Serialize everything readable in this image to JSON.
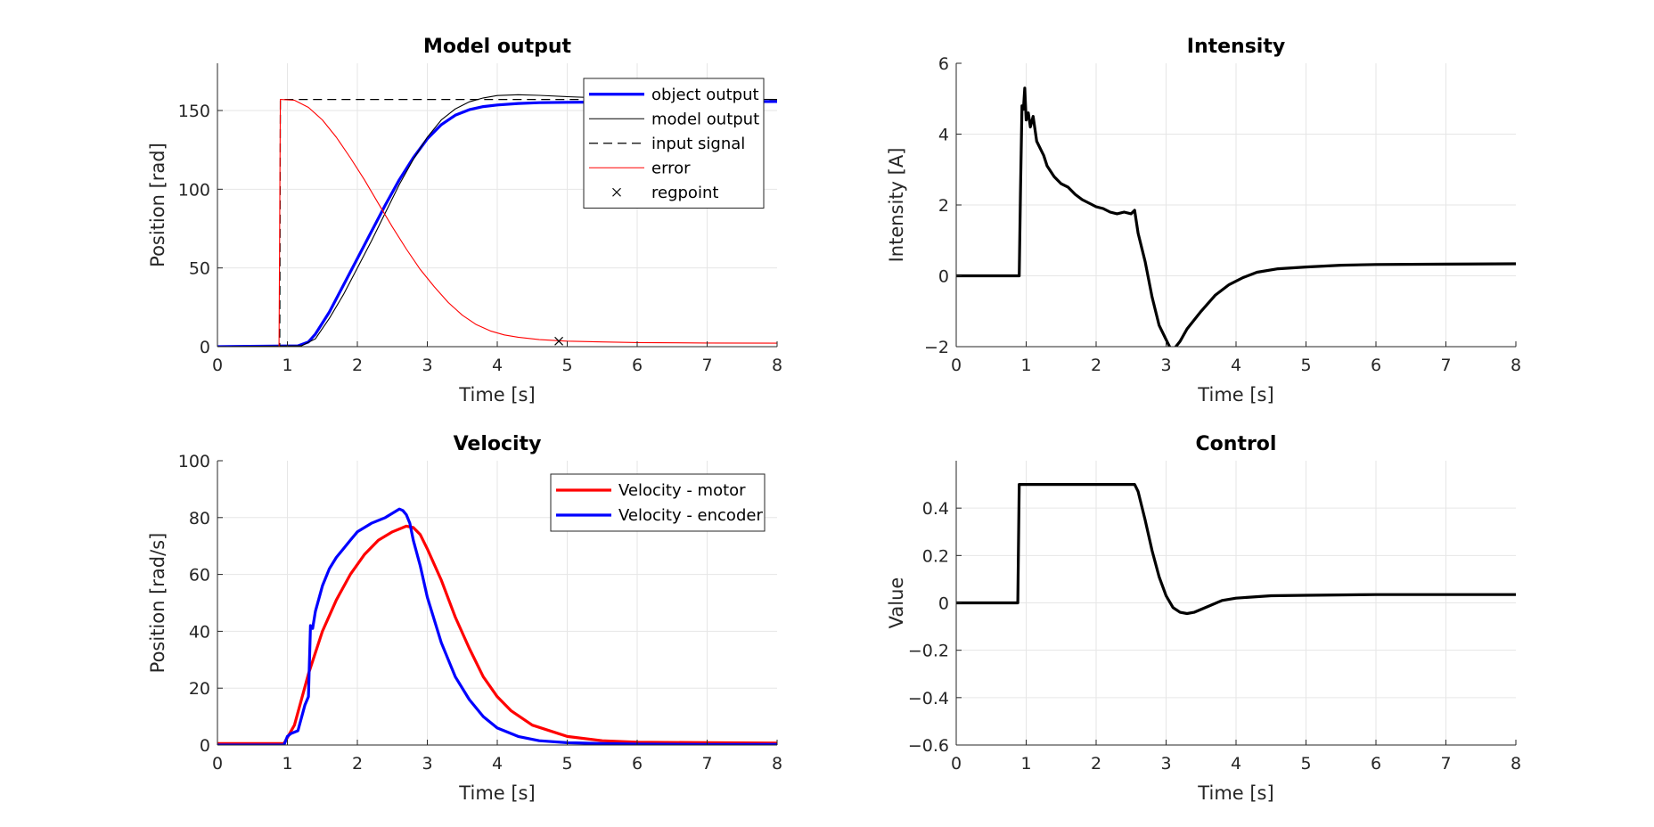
{
  "chart_data": [
    {
      "type": "line",
      "title": "Model output",
      "xlabel": "Time [s]",
      "ylabel": "Position [rad]",
      "xlim": [
        0,
        8
      ],
      "ylim": [
        0,
        180
      ],
      "xticks": [
        0,
        1,
        2,
        3,
        4,
        5,
        6,
        7,
        8
      ],
      "yticks": [
        0,
        50,
        100,
        150
      ],
      "grid": true,
      "legend_position": "top-right",
      "series": [
        {
          "name": "object output",
          "color": "#0000ff",
          "style": "solid-thick",
          "x": [
            0,
            1.15,
            1.3,
            1.4,
            1.6,
            1.8,
            2.0,
            2.2,
            2.4,
            2.6,
            2.8,
            3.0,
            3.2,
            3.4,
            3.6,
            3.8,
            4.0,
            4.3,
            4.6,
            5.0,
            5.5,
            6.0,
            7.0,
            8.0
          ],
          "y": [
            0,
            0.5,
            3,
            8,
            22,
            39,
            56,
            73,
            90,
            106,
            120,
            132,
            141,
            147,
            150.5,
            152.5,
            153.5,
            154.5,
            155,
            155.2,
            155.4,
            155.5,
            155.6,
            155.7
          ]
        },
        {
          "name": "model output",
          "color": "#000000",
          "style": "solid-thin",
          "x": [
            0,
            1.2,
            1.4,
            1.6,
            1.8,
            2.0,
            2.2,
            2.4,
            2.6,
            2.8,
            3.0,
            3.2,
            3.4,
            3.6,
            3.8,
            4.0,
            4.3,
            4.6,
            5.0,
            5.5,
            6.0,
            7.0,
            8.0
          ],
          "y": [
            0,
            0.5,
            5,
            18,
            33,
            50,
            67,
            85,
            103,
            119,
            133,
            144,
            151,
            155.5,
            158,
            159.5,
            160,
            159.6,
            158.8,
            158,
            157.5,
            157.2,
            157
          ]
        },
        {
          "name": "input signal",
          "color": "#000000",
          "style": "dashed",
          "x": [
            0,
            0.89,
            0.9,
            8.0
          ],
          "y": [
            0,
            0,
            157,
            157
          ]
        },
        {
          "name": "error",
          "color": "#ff0000",
          "style": "solid-thin",
          "x": [
            0,
            0.88,
            0.9,
            1.1,
            1.3,
            1.5,
            1.7,
            1.9,
            2.1,
            2.3,
            2.5,
            2.7,
            2.9,
            3.1,
            3.3,
            3.5,
            3.7,
            3.9,
            4.1,
            4.3,
            4.6,
            5.0,
            5.5,
            6.0,
            7.0,
            8.0
          ],
          "y": [
            0,
            0,
            157,
            156.5,
            152,
            144,
            133,
            120,
            106,
            91,
            76,
            62,
            49,
            38,
            28,
            20,
            14,
            10,
            7.5,
            6,
            4.5,
            3.5,
            3,
            2.6,
            2.3,
            2.2
          ]
        },
        {
          "name": "regpoint",
          "color": "#000000",
          "style": "marker-x",
          "x": [
            4.88
          ],
          "y": [
            3.5
          ]
        }
      ]
    },
    {
      "type": "line",
      "title": "Intensity",
      "xlabel": "Time [s]",
      "ylabel": "Intensity [A]",
      "xlim": [
        0,
        8
      ],
      "ylim": [
        -2,
        6
      ],
      "xticks": [
        0,
        1,
        2,
        3,
        4,
        5,
        6,
        7,
        8
      ],
      "yticks": [
        -2,
        0,
        2,
        4,
        6
      ],
      "grid": true,
      "series": [
        {
          "name": "",
          "color": "#000000",
          "style": "solid-thick",
          "x": [
            0,
            0.9,
            0.92,
            0.94,
            0.96,
            0.98,
            1.0,
            1.03,
            1.06,
            1.1,
            1.15,
            1.2,
            1.25,
            1.3,
            1.4,
            1.5,
            1.6,
            1.7,
            1.8,
            1.9,
            2.0,
            2.1,
            2.2,
            2.3,
            2.4,
            2.5,
            2.55,
            2.6,
            2.7,
            2.8,
            2.9,
            3.0,
            3.05,
            3.1,
            3.2,
            3.3,
            3.5,
            3.7,
            3.9,
            4.1,
            4.3,
            4.6,
            5.0,
            5.5,
            6.0,
            7.0,
            8.0
          ],
          "y": [
            0,
            0,
            2.5,
            4.8,
            4.7,
            5.3,
            4.4,
            4.6,
            4.2,
            4.5,
            3.8,
            3.6,
            3.4,
            3.1,
            2.8,
            2.6,
            2.5,
            2.3,
            2.15,
            2.05,
            1.95,
            1.9,
            1.8,
            1.75,
            1.8,
            1.75,
            1.85,
            1.2,
            0.4,
            -0.6,
            -1.4,
            -1.8,
            -2.0,
            -2.1,
            -1.85,
            -1.5,
            -1.0,
            -0.55,
            -0.25,
            -0.05,
            0.1,
            0.2,
            0.25,
            0.3,
            0.32,
            0.33,
            0.34
          ]
        }
      ]
    },
    {
      "type": "line",
      "title": "Velocity",
      "xlabel": "Time [s]",
      "ylabel": "Position [rad/s]",
      "xlim": [
        0,
        8
      ],
      "ylim": [
        0,
        100
      ],
      "xticks": [
        0,
        1,
        2,
        3,
        4,
        5,
        6,
        7,
        8
      ],
      "yticks": [
        0,
        20,
        40,
        60,
        80,
        100
      ],
      "grid": true,
      "legend_position": "top-right",
      "series": [
        {
          "name": "Velocity - motor",
          "color": "#ff0000",
          "style": "solid-thick",
          "x": [
            0,
            0.95,
            1.1,
            1.3,
            1.5,
            1.7,
            1.9,
            2.1,
            2.3,
            2.5,
            2.7,
            2.8,
            2.9,
            3.0,
            3.2,
            3.4,
            3.6,
            3.8,
            4.0,
            4.2,
            4.5,
            5.0,
            5.5,
            6.0,
            7.0,
            8.0
          ],
          "y": [
            0.5,
            0.5,
            7,
            25,
            40,
            51,
            60,
            67,
            72,
            75,
            77,
            76.5,
            74,
            69,
            58,
            45,
            34,
            24,
            17,
            12,
            7,
            3,
            1.5,
            1,
            0.8,
            0.7
          ]
        },
        {
          "name": "Velocity - encoder",
          "color": "#0000ff",
          "style": "solid-thick",
          "x": [
            0,
            0.95,
            1.0,
            1.05,
            1.15,
            1.25,
            1.3,
            1.33,
            1.36,
            1.4,
            1.5,
            1.6,
            1.7,
            1.8,
            1.9,
            2.0,
            2.2,
            2.4,
            2.6,
            2.65,
            2.7,
            2.75,
            2.8,
            2.9,
            3.0,
            3.2,
            3.4,
            3.6,
            3.8,
            4.0,
            4.3,
            4.6,
            5.0,
            5.5,
            6.0,
            7.0,
            8.0
          ],
          "y": [
            0,
            0,
            3,
            4,
            5,
            14,
            17,
            42,
            41,
            47,
            56,
            62,
            66,
            69,
            72,
            75,
            78,
            80,
            83,
            82.5,
            81,
            78,
            72,
            63,
            52,
            36,
            24,
            16,
            10,
            6,
            3,
            1.5,
            0.8,
            0.5,
            0.3,
            0.2,
            0.2
          ]
        }
      ]
    },
    {
      "type": "line",
      "title": "Control",
      "xlabel": "Time [s]",
      "ylabel": "Value",
      "xlim": [
        0,
        8
      ],
      "ylim": [
        -0.6,
        0.6
      ],
      "xticks": [
        0,
        1,
        2,
        3,
        4,
        5,
        6,
        7,
        8
      ],
      "yticks": [
        -0.6,
        -0.4,
        -0.2,
        0,
        0.2,
        0.4
      ],
      "grid": true,
      "series": [
        {
          "name": "",
          "color": "#000000",
          "style": "solid-thick",
          "x": [
            0,
            0.88,
            0.9,
            2.55,
            2.6,
            2.7,
            2.8,
            2.9,
            3.0,
            3.1,
            3.2,
            3.3,
            3.4,
            3.6,
            3.8,
            4.0,
            4.5,
            5.0,
            6.0,
            7.0,
            8.0
          ],
          "y": [
            0,
            0,
            0.5,
            0.5,
            0.47,
            0.35,
            0.22,
            0.11,
            0.03,
            -0.02,
            -0.04,
            -0.045,
            -0.04,
            -0.015,
            0.01,
            0.02,
            0.03,
            0.032,
            0.035,
            0.035,
            0.035
          ]
        }
      ]
    }
  ]
}
